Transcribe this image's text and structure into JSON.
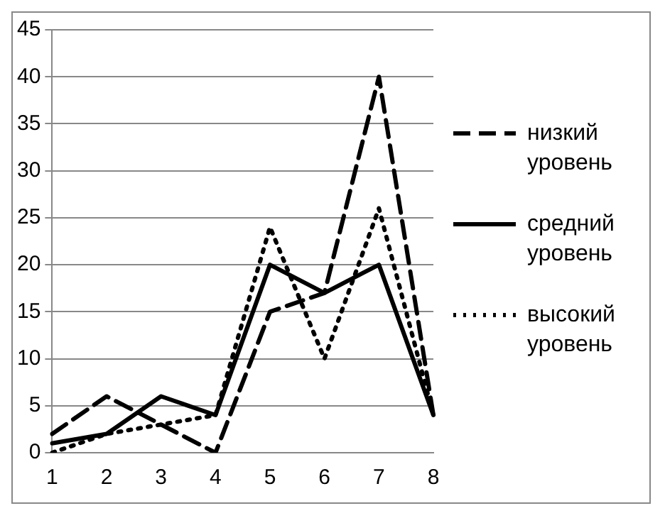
{
  "chart_data": {
    "type": "line",
    "categories": [
      "1",
      "2",
      "3",
      "4",
      "5",
      "6",
      "7",
      "8"
    ],
    "series": [
      {
        "name": "низкий уровень",
        "color": "#000000",
        "line_style": "dashed",
        "values": [
          2,
          6,
          3,
          0,
          15,
          17,
          40,
          4
        ]
      },
      {
        "name": "средний уровень",
        "color": "#000000",
        "line_style": "solid",
        "values": [
          1,
          2,
          6,
          4,
          20,
          17,
          20,
          4
        ]
      },
      {
        "name": "высокий уровень",
        "color": "#000000",
        "line_style": "dotted",
        "values": [
          0,
          2,
          3,
          4,
          24,
          10,
          26,
          4
        ]
      }
    ],
    "ylim": [
      0,
      45
    ],
    "yticks": [
      0,
      5,
      10,
      15,
      20,
      25,
      30,
      35,
      40,
      45
    ],
    "grid": "y",
    "legend": "right",
    "marker": "none"
  }
}
